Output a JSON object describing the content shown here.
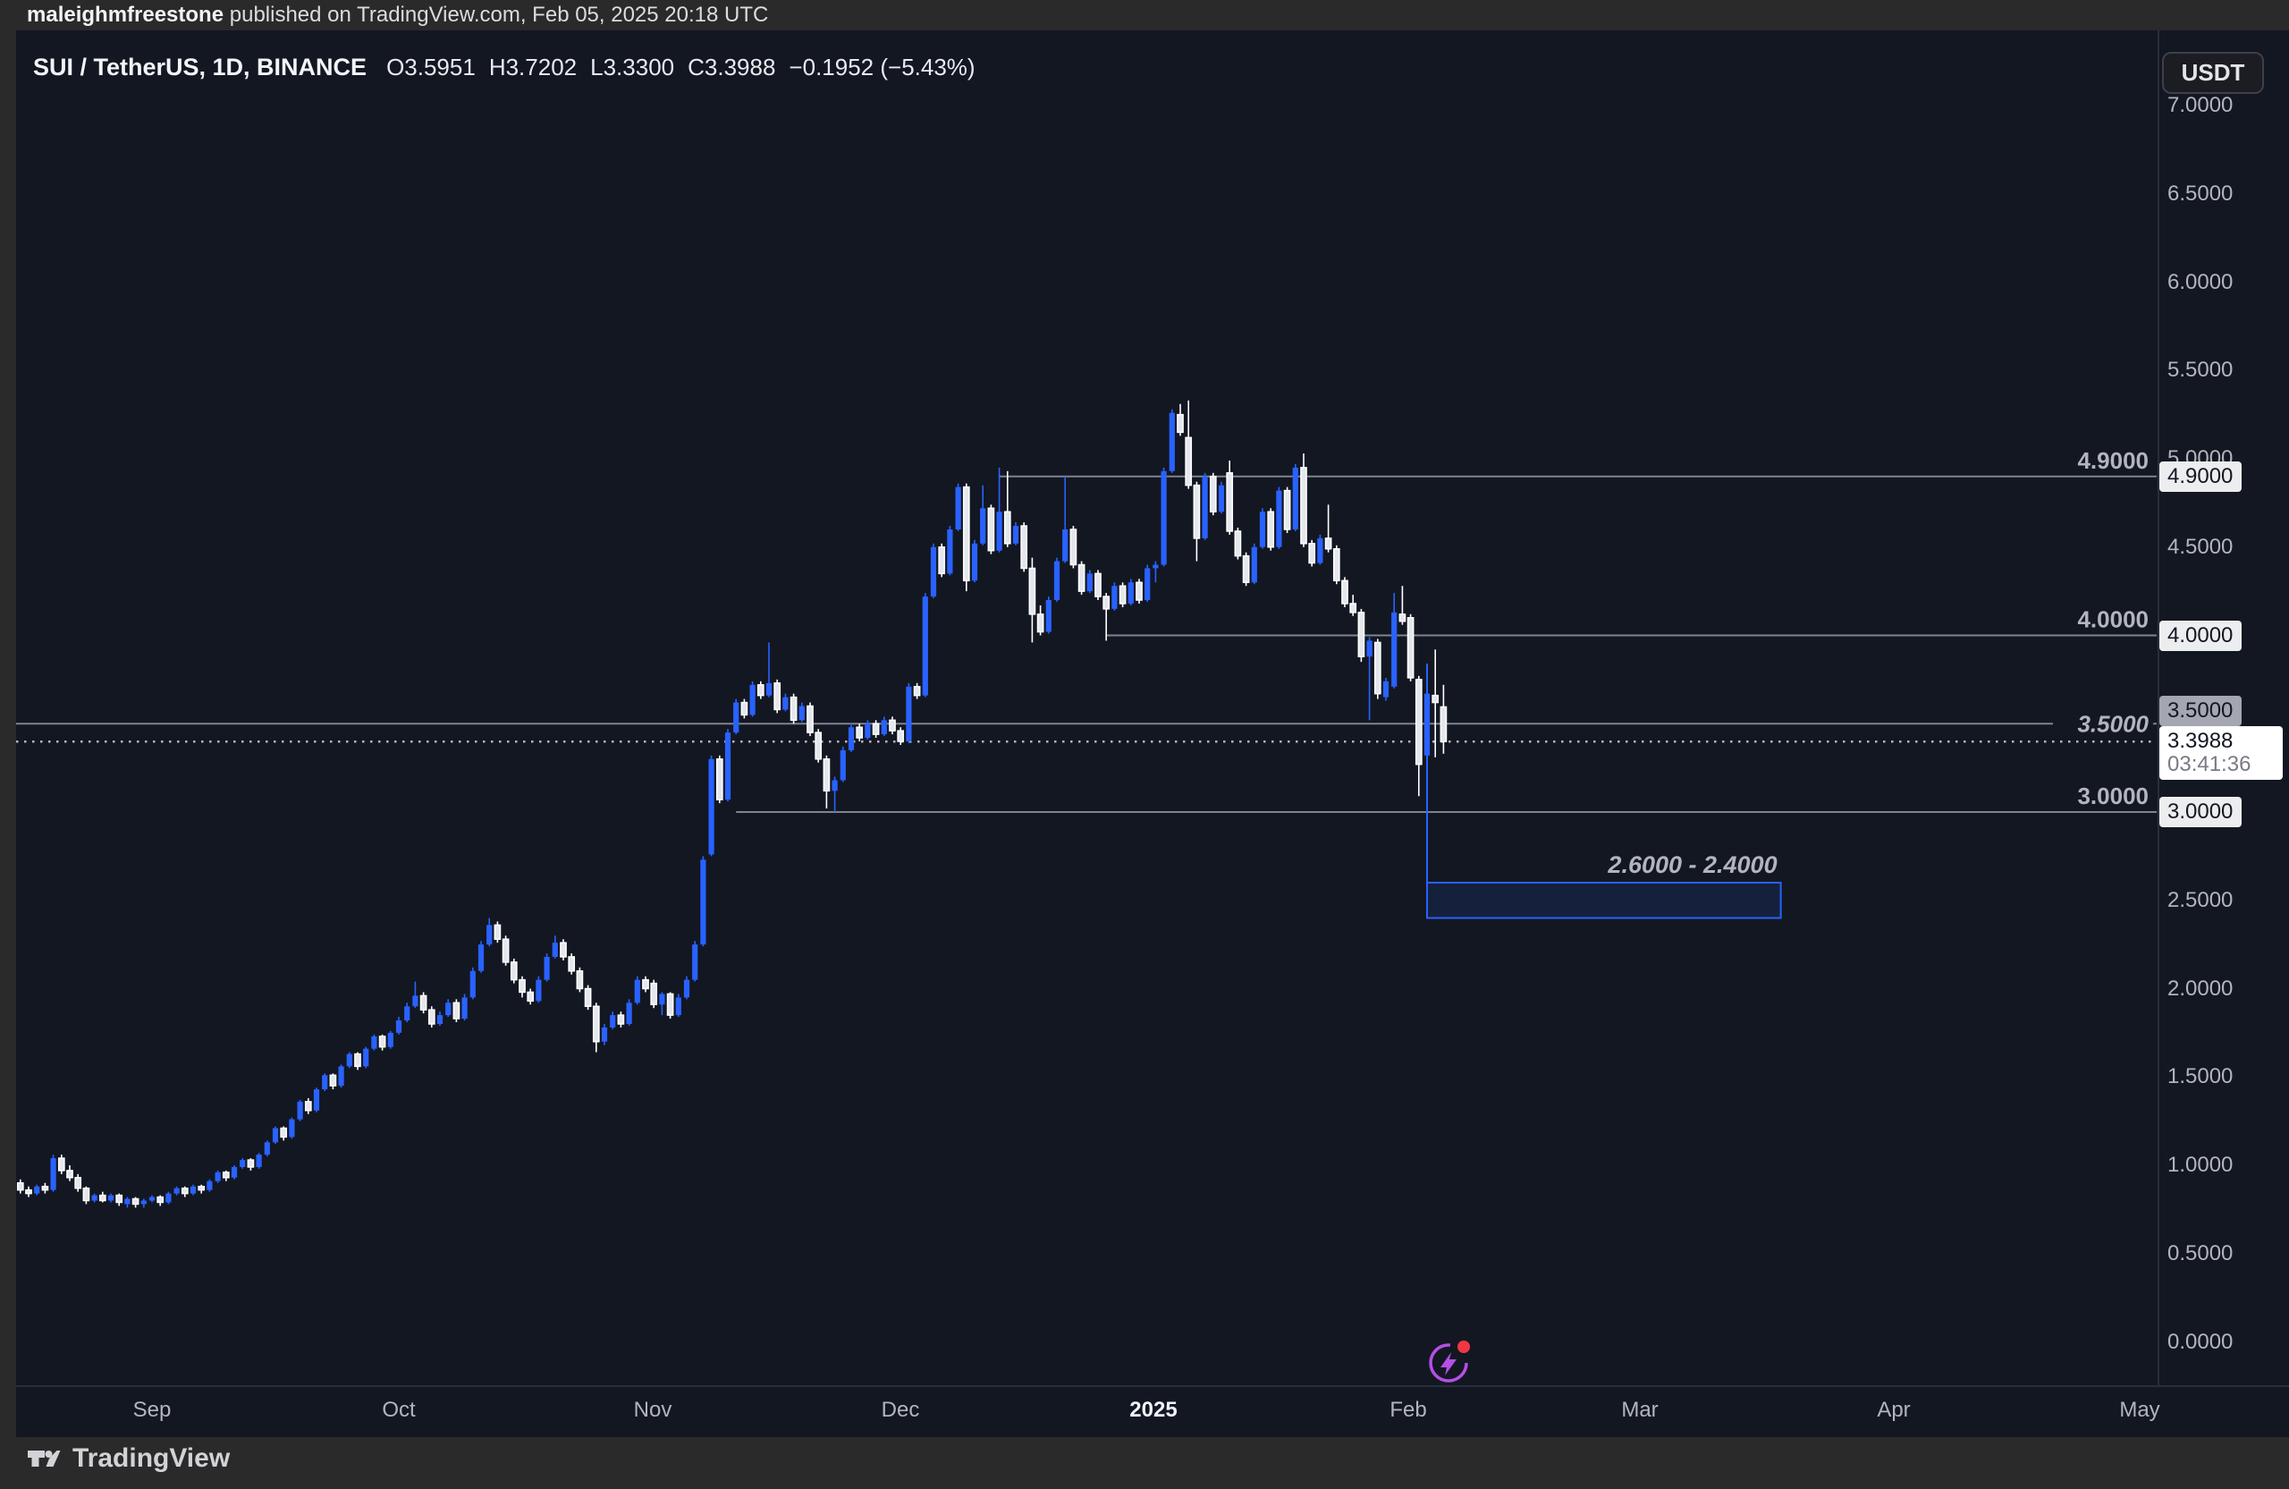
{
  "palette": {
    "outer_bg": "#2A2A2A",
    "chart_bg": "#131722",
    "accent_blue": "#2962FF",
    "level_line": "#80848E",
    "dotted_line": "#B2B5BE",
    "axis_text": "#B2B5BE",
    "label_light_bg": "#ECEDEF",
    "label_gray_bg": "#A4A7B1",
    "current_label_bg": "#FFFFFF",
    "countdown_text": "#787B86",
    "flash_purple": "#B44FE8",
    "alert_red": "#F23645"
  },
  "top_bar": {
    "username": "maleighmfreestone",
    "suffix": " published on TradingView.com, Feb 05, 2025 20:18 UTC"
  },
  "legend": {
    "title": "SUI / TetherUS, 1D, BINANCE",
    "open": "O3.5951",
    "high": "H3.7202",
    "low": "L3.3300",
    "close": "C3.3988",
    "change": "−0.1952 (−5.43%)"
  },
  "currency_button": "USDT",
  "price_axis": {
    "ticks": [
      "7.0000",
      "6.5000",
      "6.0000",
      "5.5000",
      "5.0000",
      "4.5000",
      "4.0000",
      "3.5000",
      "3.0000",
      "2.5000",
      "2.0000",
      "1.5000",
      "1.0000",
      "0.5000",
      "0.0000"
    ],
    "level_labels": [
      {
        "text": "4.9000",
        "price": 4.9,
        "variant": "light",
        "offset": 0
      },
      {
        "text": "4.0000",
        "price": 4.0,
        "variant": "light",
        "offset": 0
      },
      {
        "text": "3.5000",
        "price": 3.5,
        "variant": "gray",
        "offset": -14
      },
      {
        "text": "3.0000",
        "price": 3.0,
        "variant": "light",
        "offset": 0
      }
    ],
    "current": {
      "price": 3.3988,
      "price_text": "3.3988",
      "countdown": "03:41:36"
    }
  },
  "time_axis": {
    "labels": [
      {
        "text": "Sep",
        "bold": false
      },
      {
        "text": "Oct",
        "bold": false
      },
      {
        "text": "Nov",
        "bold": false
      },
      {
        "text": "Dec",
        "bold": false
      },
      {
        "text": "2025",
        "bold": true
      },
      {
        "text": "Feb",
        "bold": false
      },
      {
        "text": "Mar",
        "bold": false
      },
      {
        "text": "Apr",
        "bold": false
      },
      {
        "text": "May",
        "bold": false
      }
    ]
  },
  "drawings": {
    "horizontal_lines": [
      {
        "label": "4.9000",
        "price": 4.9,
        "start_index": 119,
        "full_width": false,
        "italic": false
      },
      {
        "label": "4.0000",
        "price": 4.0,
        "start_index": 132,
        "full_width": false,
        "italic": false
      },
      {
        "label": "3.5000",
        "price": 3.5,
        "start_index": 0,
        "full_width": true,
        "italic": true
      },
      {
        "label": "3.0000",
        "price": 3.0,
        "start_index": 87,
        "full_width": false,
        "italic": false
      }
    ],
    "target_zone": {
      "label": "2.6000 - 2.4000",
      "price_top": 2.6,
      "price_bottom": 2.4,
      "start_index": 171,
      "days_span": 43
    },
    "vertical_line": {
      "index": 171,
      "price_top": 3.84,
      "price_bottom": 2.4
    },
    "current_price_line": {
      "price": 3.3988,
      "style": "dotted"
    }
  },
  "footer": {
    "logo_text": "TradingView"
  },
  "chart_data": {
    "type": "candlestick",
    "title": "SUI / TetherUS, 1D, BINANCE",
    "timeframe": "1D",
    "x_start_date": "2024-08-16",
    "x_end_date": "2025-02-05",
    "x_tick_labels": [
      "Sep",
      "Oct",
      "Nov",
      "Dec",
      "2025",
      "Feb",
      "Mar",
      "Apr",
      "May"
    ],
    "ylim": [
      0.0,
      7.0
    ],
    "y_tick_step": 0.5,
    "grid": "off",
    "legend_position": "top-left",
    "up_color": "#2962FF",
    "down_color": "#E4E7EC",
    "down_border_color": "#FFFFFF",
    "last_price": 3.3988,
    "horizontal_levels": [
      4.9,
      4.0,
      3.5,
      3.0
    ],
    "target_zone": [
      2.6,
      2.4
    ],
    "candles_ohlc": [
      [
        0.9,
        0.92,
        0.84,
        0.86
      ],
      [
        0.86,
        0.88,
        0.82,
        0.84
      ],
      [
        0.84,
        0.89,
        0.83,
        0.88
      ],
      [
        0.88,
        0.9,
        0.84,
        0.86
      ],
      [
        0.86,
        1.06,
        0.85,
        1.04
      ],
      [
        1.04,
        1.06,
        0.95,
        0.97
      ],
      [
        0.97,
        1.0,
        0.91,
        0.93
      ],
      [
        0.93,
        0.95,
        0.85,
        0.87
      ],
      [
        0.87,
        0.88,
        0.78,
        0.8
      ],
      [
        0.8,
        0.84,
        0.79,
        0.83
      ],
      [
        0.83,
        0.85,
        0.79,
        0.8
      ],
      [
        0.8,
        0.84,
        0.79,
        0.83
      ],
      [
        0.83,
        0.84,
        0.77,
        0.79
      ],
      [
        0.78,
        0.82,
        0.76,
        0.81
      ],
      [
        0.81,
        0.82,
        0.76,
        0.78
      ],
      [
        0.78,
        0.81,
        0.76,
        0.8
      ],
      [
        0.8,
        0.83,
        0.79,
        0.82
      ],
      [
        0.82,
        0.83,
        0.77,
        0.79
      ],
      [
        0.79,
        0.85,
        0.78,
        0.84
      ],
      [
        0.84,
        0.88,
        0.83,
        0.87
      ],
      [
        0.87,
        0.88,
        0.82,
        0.84
      ],
      [
        0.84,
        0.89,
        0.83,
        0.88
      ],
      [
        0.88,
        0.89,
        0.84,
        0.86
      ],
      [
        0.86,
        0.92,
        0.85,
        0.91
      ],
      [
        0.91,
        0.97,
        0.9,
        0.96
      ],
      [
        0.96,
        0.97,
        0.91,
        0.93
      ],
      [
        0.93,
        1.0,
        0.92,
        0.99
      ],
      [
        0.99,
        1.04,
        0.98,
        1.03
      ],
      [
        1.03,
        1.04,
        0.97,
        0.99
      ],
      [
        0.99,
        1.07,
        0.98,
        1.06
      ],
      [
        1.06,
        1.14,
        1.05,
        1.13
      ],
      [
        1.13,
        1.22,
        1.12,
        1.21
      ],
      [
        1.21,
        1.22,
        1.14,
        1.16
      ],
      [
        1.16,
        1.27,
        1.15,
        1.26
      ],
      [
        1.26,
        1.37,
        1.25,
        1.36
      ],
      [
        1.36,
        1.38,
        1.29,
        1.31
      ],
      [
        1.31,
        1.44,
        1.3,
        1.43
      ],
      [
        1.43,
        1.52,
        1.42,
        1.51
      ],
      [
        1.51,
        1.52,
        1.43,
        1.45
      ],
      [
        1.45,
        1.57,
        1.44,
        1.56
      ],
      [
        1.56,
        1.64,
        1.55,
        1.63
      ],
      [
        1.63,
        1.64,
        1.54,
        1.56
      ],
      [
        1.56,
        1.67,
        1.55,
        1.66
      ],
      [
        1.66,
        1.74,
        1.65,
        1.73
      ],
      [
        1.73,
        1.74,
        1.65,
        1.67
      ],
      [
        1.67,
        1.76,
        1.66,
        1.75
      ],
      [
        1.75,
        1.84,
        1.74,
        1.82
      ],
      [
        1.82,
        1.92,
        1.81,
        1.9
      ],
      [
        1.9,
        2.04,
        1.89,
        1.96
      ],
      [
        1.96,
        1.98,
        1.86,
        1.88
      ],
      [
        1.88,
        1.9,
        1.78,
        1.8
      ],
      [
        1.8,
        1.87,
        1.79,
        1.85
      ],
      [
        1.85,
        1.94,
        1.84,
        1.92
      ],
      [
        1.92,
        1.94,
        1.81,
        1.83
      ],
      [
        1.83,
        1.97,
        1.82,
        1.95
      ],
      [
        1.95,
        2.12,
        1.94,
        2.1
      ],
      [
        2.1,
        2.27,
        2.09,
        2.25
      ],
      [
        2.25,
        2.4,
        2.24,
        2.36
      ],
      [
        2.36,
        2.38,
        2.26,
        2.28
      ],
      [
        2.28,
        2.3,
        2.13,
        2.15
      ],
      [
        2.15,
        2.17,
        2.03,
        2.05
      ],
      [
        2.05,
        2.07,
        1.95,
        1.98
      ],
      [
        1.98,
        2.0,
        1.91,
        1.93
      ],
      [
        1.93,
        2.07,
        1.92,
        2.05
      ],
      [
        2.05,
        2.2,
        2.04,
        2.18
      ],
      [
        2.18,
        2.3,
        2.17,
        2.26
      ],
      [
        2.26,
        2.28,
        2.16,
        2.18
      ],
      [
        2.18,
        2.2,
        2.08,
        2.1
      ],
      [
        2.1,
        2.12,
        1.98,
        2.0
      ],
      [
        2.0,
        2.02,
        1.88,
        1.9
      ],
      [
        1.9,
        1.92,
        1.64,
        1.7
      ],
      [
        1.7,
        1.8,
        1.68,
        1.78
      ],
      [
        1.78,
        1.87,
        1.77,
        1.85
      ],
      [
        1.85,
        1.87,
        1.78,
        1.8
      ],
      [
        1.8,
        1.94,
        1.79,
        1.92
      ],
      [
        1.92,
        2.07,
        1.91,
        2.05
      ],
      [
        2.05,
        2.07,
        1.98,
        2.0
      ],
      [
        2.03,
        2.05,
        1.89,
        1.91
      ],
      [
        1.91,
        1.98,
        1.85,
        1.97
      ],
      [
        1.97,
        1.98,
        1.83,
        1.85
      ],
      [
        1.85,
        1.97,
        1.84,
        1.95
      ],
      [
        1.95,
        2.07,
        1.94,
        2.05
      ],
      [
        2.05,
        2.27,
        2.04,
        2.25
      ],
      [
        2.25,
        2.75,
        2.24,
        2.73
      ],
      [
        2.76,
        3.32,
        2.75,
        3.3
      ],
      [
        3.3,
        3.32,
        3.05,
        3.07
      ],
      [
        3.07,
        3.47,
        3.06,
        3.45
      ],
      [
        3.45,
        3.64,
        3.44,
        3.62
      ],
      [
        3.62,
        3.64,
        3.53,
        3.55
      ],
      [
        3.55,
        3.74,
        3.54,
        3.72
      ],
      [
        3.72,
        3.74,
        3.64,
        3.66
      ],
      [
        3.66,
        3.96,
        3.65,
        3.73
      ],
      [
        3.73,
        3.75,
        3.56,
        3.58
      ],
      [
        3.58,
        3.67,
        3.57,
        3.65
      ],
      [
        3.65,
        3.67,
        3.5,
        3.52
      ],
      [
        3.52,
        3.62,
        3.51,
        3.6
      ],
      [
        3.6,
        3.62,
        3.43,
        3.45
      ],
      [
        3.45,
        3.47,
        3.28,
        3.3
      ],
      [
        3.3,
        3.32,
        3.02,
        3.12
      ],
      [
        3.12,
        3.2,
        3.0,
        3.18
      ],
      [
        3.18,
        3.37,
        3.17,
        3.35
      ],
      [
        3.35,
        3.5,
        3.34,
        3.48
      ],
      [
        3.48,
        3.5,
        3.4,
        3.42
      ],
      [
        3.42,
        3.52,
        3.41,
        3.5
      ],
      [
        3.5,
        3.52,
        3.42,
        3.44
      ],
      [
        3.44,
        3.54,
        3.43,
        3.52
      ],
      [
        3.52,
        3.54,
        3.44,
        3.46
      ],
      [
        3.46,
        3.48,
        3.38,
        3.4
      ],
      [
        3.4,
        3.73,
        3.39,
        3.71
      ],
      [
        3.71,
        3.73,
        3.64,
        3.66
      ],
      [
        3.66,
        4.24,
        3.65,
        4.22
      ],
      [
        4.22,
        4.52,
        4.21,
        4.5
      ],
      [
        4.5,
        4.52,
        4.33,
        4.35
      ],
      [
        4.35,
        4.62,
        4.34,
        4.6
      ],
      [
        4.6,
        4.86,
        4.59,
        4.84
      ],
      [
        4.84,
        4.86,
        4.25,
        4.31
      ],
      [
        4.31,
        4.54,
        4.3,
        4.52
      ],
      [
        4.52,
        4.85,
        4.51,
        4.72
      ],
      [
        4.72,
        4.74,
        4.46,
        4.48
      ],
      [
        4.48,
        4.95,
        4.47,
        4.7
      ],
      [
        4.7,
        4.93,
        4.5,
        4.52
      ],
      [
        4.52,
        4.64,
        4.51,
        4.62
      ],
      [
        4.62,
        4.64,
        4.36,
        4.38
      ],
      [
        4.38,
        4.44,
        3.96,
        4.12
      ],
      [
        4.12,
        4.17,
        4.0,
        4.02
      ],
      [
        4.02,
        4.22,
        4.01,
        4.2
      ],
      [
        4.2,
        4.44,
        4.19,
        4.42
      ],
      [
        4.42,
        4.9,
        4.41,
        4.6
      ],
      [
        4.6,
        4.62,
        4.38,
        4.4
      ],
      [
        4.4,
        4.42,
        4.23,
        4.25
      ],
      [
        4.25,
        4.37,
        4.24,
        4.35
      ],
      [
        4.35,
        4.37,
        4.2,
        4.22
      ],
      [
        4.22,
        4.24,
        3.97,
        4.15
      ],
      [
        4.15,
        4.3,
        4.14,
        4.28
      ],
      [
        4.28,
        4.3,
        4.16,
        4.18
      ],
      [
        4.18,
        4.32,
        4.17,
        4.3
      ],
      [
        4.3,
        4.32,
        4.18,
        4.2
      ],
      [
        4.2,
        4.4,
        4.19,
        4.38
      ],
      [
        4.38,
        4.42,
        4.3,
        4.4
      ],
      [
        4.4,
        4.95,
        4.39,
        4.93
      ],
      [
        4.93,
        5.28,
        4.92,
        5.26
      ],
      [
        5.25,
        5.31,
        5.13,
        5.15
      ],
      [
        5.12,
        5.33,
        4.83,
        4.85
      ],
      [
        4.85,
        4.87,
        4.42,
        4.55
      ],
      [
        4.55,
        4.92,
        4.54,
        4.9
      ],
      [
        4.9,
        4.92,
        4.68,
        4.7
      ],
      [
        4.7,
        4.87,
        4.69,
        4.85
      ],
      [
        4.92,
        4.99,
        4.57,
        4.59
      ],
      [
        4.59,
        4.61,
        4.43,
        4.45
      ],
      [
        4.45,
        4.47,
        4.28,
        4.3
      ],
      [
        4.3,
        4.52,
        4.29,
        4.5
      ],
      [
        4.5,
        4.72,
        4.49,
        4.7
      ],
      [
        4.7,
        4.72,
        4.48,
        4.5
      ],
      [
        4.5,
        4.84,
        4.49,
        4.82
      ],
      [
        4.82,
        4.84,
        4.58,
        4.6
      ],
      [
        4.6,
        4.97,
        4.59,
        4.95
      ],
      [
        4.95,
        5.03,
        4.5,
        4.52
      ],
      [
        4.52,
        4.54,
        4.39,
        4.41
      ],
      [
        4.41,
        4.57,
        4.4,
        4.55
      ],
      [
        4.55,
        4.74,
        4.47,
        4.49
      ],
      [
        4.49,
        4.51,
        4.29,
        4.31
      ],
      [
        4.31,
        4.33,
        4.16,
        4.18
      ],
      [
        4.18,
        4.23,
        4.11,
        4.13
      ],
      [
        4.13,
        4.15,
        3.85,
        3.88
      ],
      [
        3.88,
        3.99,
        3.52,
        3.97
      ],
      [
        3.96,
        3.98,
        3.64,
        3.67
      ],
      [
        3.65,
        3.76,
        3.63,
        3.74
      ],
      [
        3.71,
        4.24,
        3.7,
        4.13
      ],
      [
        4.12,
        4.28,
        4.06,
        4.08
      ],
      [
        4.1,
        4.12,
        3.74,
        3.76
      ],
      [
        3.75,
        3.77,
        3.09,
        3.27
      ],
      [
        3.32,
        3.84,
        3.26,
        3.67
      ],
      [
        3.66,
        3.92,
        3.31,
        3.62
      ],
      [
        3.5951,
        3.7202,
        3.33,
        3.3988
      ]
    ]
  }
}
